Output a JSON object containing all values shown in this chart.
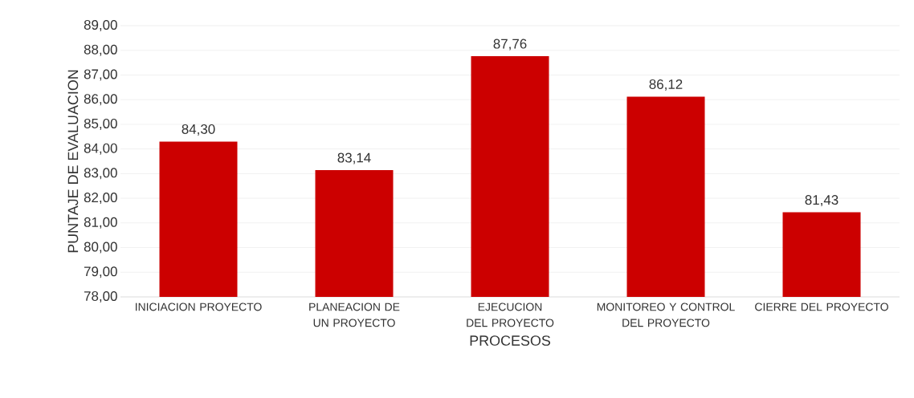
{
  "chart_data": {
    "type": "bar",
    "xlabel": "PROCESOS",
    "ylabel": "PUNTAJE DE EVALUACION",
    "categories": [
      "INICIACION PROYECTO",
      "PLANEACION DE UN PROYECTO",
      "EJECUCION DEL PROYECTO",
      "MONITOREO Y CONTROL DEL PROYECTO",
      "CIERRE DEL PROYECTO"
    ],
    "values": [
      84.3,
      83.14,
      87.76,
      86.12,
      81.43
    ],
    "value_labels": [
      "84,30",
      "83,14",
      "87,76",
      "86,12",
      "81,43"
    ],
    "color": "#cc0000",
    "ylim": [
      78,
      89
    ],
    "yticks": [
      {
        "value": 78,
        "label": "78,00"
      },
      {
        "value": 79,
        "label": "79,00"
      },
      {
        "value": 80,
        "label": "80,00"
      },
      {
        "value": 81,
        "label": "81,00"
      },
      {
        "value": 82,
        "label": "82,00"
      },
      {
        "value": 83,
        "label": "83,00"
      },
      {
        "value": 84,
        "label": "84,00"
      },
      {
        "value": 85,
        "label": "85,00"
      },
      {
        "value": 86,
        "label": "86,00"
      },
      {
        "value": 87,
        "label": "87,00"
      },
      {
        "value": 88,
        "label": "88,00"
      },
      {
        "value": 89,
        "label": "89,00"
      }
    ],
    "grid": "y"
  }
}
